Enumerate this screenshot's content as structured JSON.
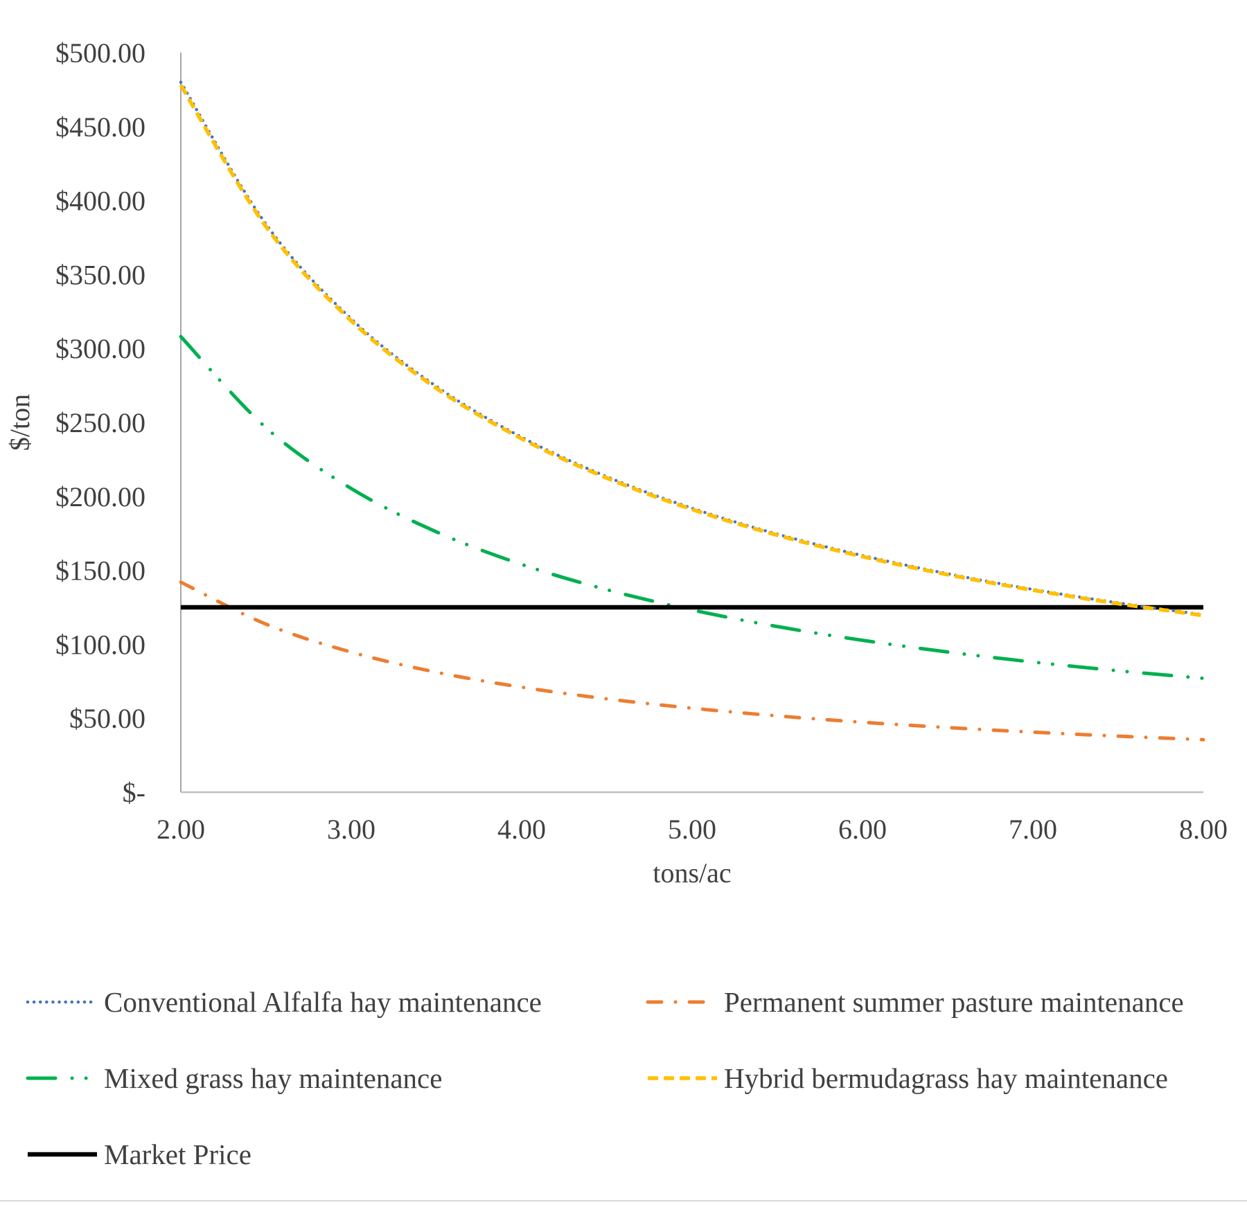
{
  "chart_data": {
    "type": "line",
    "title": "",
    "xlabel": "tons/ac",
    "ylabel": "$/ton",
    "xlim": [
      2,
      8
    ],
    "ylim": [
      0,
      500
    ],
    "grid": false,
    "legend_position": "bottom",
    "x_ticks": [
      "2.00",
      "3.00",
      "4.00",
      "5.00",
      "6.00",
      "7.00",
      "8.00"
    ],
    "y_ticks": [
      "$-",
      "$50.00",
      "$100.00",
      "$150.00",
      "$200.00",
      "$250.00",
      "$300.00",
      "$350.00",
      "$400.00",
      "$450.00",
      "$500.00"
    ],
    "x": [
      2,
      2.5,
      3,
      3.5,
      4,
      4.5,
      5,
      5.5,
      6,
      6.5,
      7,
      7.5,
      8
    ],
    "series": [
      {
        "name": "Conventional Alfalfa hay maintenance",
        "color": "#4472C4",
        "style": "dotted",
        "values": [
          480,
          384,
          320,
          274.3,
          240,
          213.3,
          192,
          174.5,
          160,
          147.7,
          137.1,
          128,
          120
        ]
      },
      {
        "name": "Permanent summer pasture maintenance",
        "color": "#ED7D31",
        "style": "dash-dot",
        "values": [
          142,
          113.6,
          94.7,
          81.1,
          71,
          63.1,
          56.8,
          51.6,
          47.3,
          43.7,
          40.6,
          37.9,
          35.5
        ]
      },
      {
        "name": "Mixed grass hay maintenance",
        "color": "#00B050",
        "style": "long-dash-dot-dot",
        "values": [
          308,
          246.4,
          205.3,
          176,
          154,
          136.9,
          123.2,
          112,
          102.7,
          94.8,
          88,
          82.1,
          77
        ]
      },
      {
        "name": "Hybrid bermudagrass hay maintenance",
        "color": "#FFC000",
        "style": "dashed",
        "values": [
          478,
          382.4,
          318.7,
          273.1,
          239,
          212.4,
          191.2,
          173.8,
          159.3,
          147.1,
          136.6,
          127.5,
          119.5
        ]
      },
      {
        "name": "Market Price",
        "color": "#000000",
        "style": "solid",
        "values": [
          125,
          125,
          125,
          125,
          125,
          125,
          125,
          125,
          125,
          125,
          125,
          125,
          125
        ]
      }
    ]
  }
}
